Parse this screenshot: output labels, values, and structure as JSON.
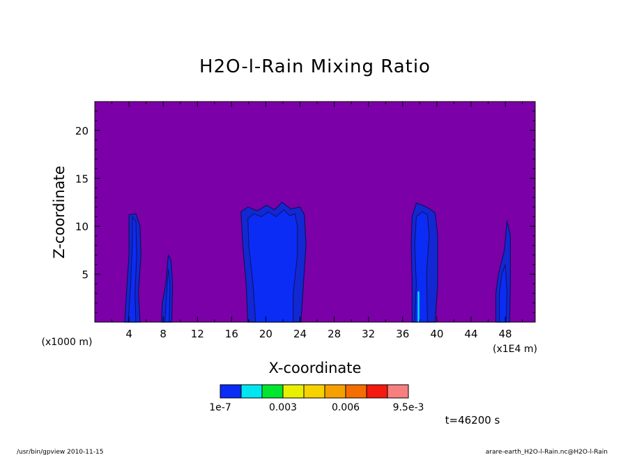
{
  "chart_data": {
    "type": "heatmap",
    "title": "H2O-l-Rain Mixing Ratio",
    "xlabel": "X-coordinate",
    "ylabel": "Z-coordinate",
    "x_unit_left": "(x1000 m)",
    "x_unit_right": "(x1E4 m)",
    "xlim": [
      0,
      51.5
    ],
    "ylim": [
      0,
      23
    ],
    "x_ticks": [
      4,
      8,
      12,
      16,
      20,
      24,
      28,
      32,
      36,
      40,
      44,
      48
    ],
    "x_tick_labels": [
      "4",
      "8",
      "12",
      "16",
      "20",
      "24",
      "28",
      "32",
      "36",
      "40",
      "44",
      "48"
    ],
    "y_ticks": [
      5,
      10,
      15,
      20
    ],
    "y_tick_labels": [
      "5",
      "10",
      "15",
      "20"
    ],
    "background_color": "#7b00a8",
    "colorbar": {
      "colors": [
        "#0a2cf5",
        "#00e6f0",
        "#00e62e",
        "#e8f000",
        "#f5d200",
        "#f5a000",
        "#f56e00",
        "#f51a10",
        "#f77f7f"
      ],
      "labels": [
        "1e-7",
        "0.003",
        "0.006",
        "9.5e-3"
      ]
    },
    "time_label": "t=46200 s",
    "footer_left": "/usr/bin/gpview  2010-11-15",
    "footer_right": "arare-earth_H2O-l-Rain.nc@H2O-l-Rain",
    "cells": [
      {
        "name": "cell-x4",
        "outer": [
          [
            3.5,
            0
          ],
          [
            3.7,
            3
          ],
          [
            4.0,
            7
          ],
          [
            4.0,
            11.2
          ],
          [
            4.8,
            11.3
          ],
          [
            5.3,
            10
          ],
          [
            5.4,
            7
          ],
          [
            5.1,
            3
          ],
          [
            5.3,
            0
          ]
        ],
        "inner": [
          [
            3.9,
            0
          ],
          [
            4.2,
            4
          ],
          [
            4.4,
            8.5
          ],
          [
            4.4,
            11
          ],
          [
            4.8,
            10.5
          ],
          [
            4.9,
            7
          ],
          [
            4.7,
            3
          ],
          [
            4.8,
            0
          ]
        ]
      },
      {
        "name": "cell-x8",
        "outer": [
          [
            7.8,
            0
          ],
          [
            7.9,
            2
          ],
          [
            8.3,
            4
          ],
          [
            8.6,
            7
          ],
          [
            8.9,
            6.5
          ],
          [
            9.1,
            4
          ],
          [
            9.0,
            0
          ]
        ],
        "inner": [
          [
            8.2,
            0
          ],
          [
            8.4,
            3
          ],
          [
            8.6,
            5.5
          ],
          [
            8.8,
            4
          ],
          [
            8.7,
            0
          ]
        ]
      },
      {
        "name": "cell-x20",
        "outer": [
          [
            17.9,
            0
          ],
          [
            17.7,
            4
          ],
          [
            17.3,
            8
          ],
          [
            17.1,
            11.5
          ],
          [
            17.9,
            12.0
          ],
          [
            19.0,
            11.6
          ],
          [
            20.1,
            12.2
          ],
          [
            21.0,
            11.7
          ],
          [
            21.9,
            12.5
          ],
          [
            22.9,
            11.8
          ],
          [
            24.0,
            12.0
          ],
          [
            24.5,
            11.2
          ],
          [
            24.7,
            8
          ],
          [
            24.4,
            4
          ],
          [
            24.1,
            0
          ]
        ],
        "inner": [
          [
            18.8,
            0
          ],
          [
            18.5,
            4
          ],
          [
            18.0,
            8
          ],
          [
            17.9,
            10.8
          ],
          [
            18.6,
            11.3
          ],
          [
            19.5,
            11.0
          ],
          [
            20.3,
            11.5
          ],
          [
            21.2,
            11.0
          ],
          [
            22.1,
            11.7
          ],
          [
            22.8,
            11.1
          ],
          [
            23.4,
            11.3
          ],
          [
            23.7,
            10
          ],
          [
            23.7,
            7
          ],
          [
            23.2,
            3
          ],
          [
            23.2,
            0
          ]
        ]
      },
      {
        "name": "cell-x38",
        "outer": [
          [
            37.1,
            0
          ],
          [
            37.1,
            4
          ],
          [
            37.0,
            8
          ],
          [
            37.1,
            11
          ],
          [
            37.6,
            12.4
          ],
          [
            38.3,
            12.2
          ],
          [
            39.0,
            11.9
          ],
          [
            39.8,
            11.4
          ],
          [
            40.1,
            9
          ],
          [
            40.1,
            4
          ],
          [
            39.8,
            0
          ]
        ],
        "inner": [
          [
            37.4,
            0
          ],
          [
            37.6,
            4
          ],
          [
            37.4,
            8
          ],
          [
            37.6,
            11
          ],
          [
            38.3,
            11.5
          ],
          [
            38.9,
            11.2
          ],
          [
            39.1,
            9
          ],
          [
            38.8,
            5
          ],
          [
            38.9,
            0
          ]
        ],
        "core": [
          [
            37.75,
            0
          ],
          [
            37.75,
            3.2
          ],
          [
            37.95,
            3.2
          ],
          [
            37.95,
            0
          ]
        ]
      },
      {
        "name": "cell-x48",
        "outer": [
          [
            46.9,
            0
          ],
          [
            46.9,
            3
          ],
          [
            47.2,
            5
          ],
          [
            47.9,
            7.5
          ],
          [
            48.2,
            10.6
          ],
          [
            48.6,
            9
          ],
          [
            48.6,
            4
          ],
          [
            48.5,
            0
          ]
        ],
        "inner": [
          [
            47.3,
            0
          ],
          [
            47.3,
            3
          ],
          [
            47.6,
            5
          ],
          [
            48.0,
            6
          ],
          [
            48.2,
            3
          ],
          [
            48.1,
            0
          ]
        ]
      }
    ]
  }
}
